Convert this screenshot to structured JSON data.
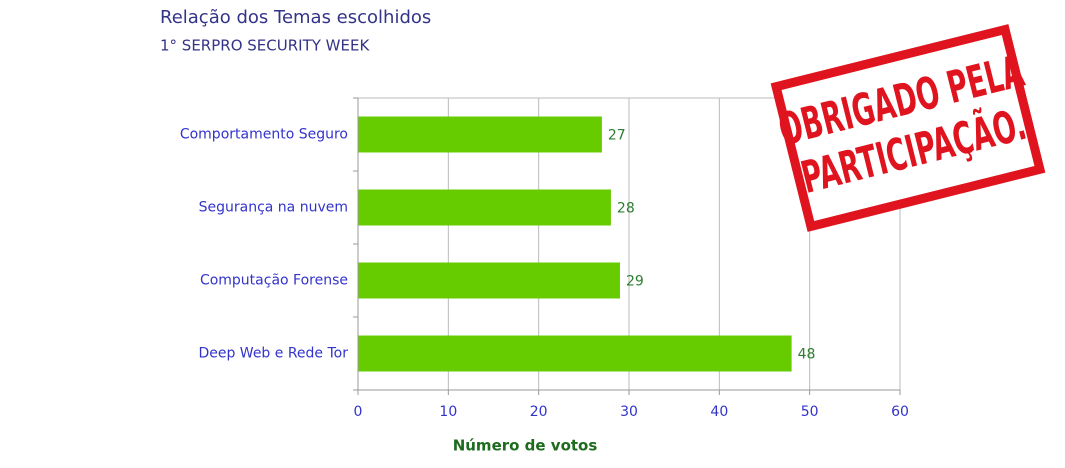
{
  "chart_data": {
    "type": "bar",
    "orientation": "horizontal",
    "title": "Relação dos Temas escolhidos",
    "subtitle": "1° SERPRO SECURITY WEEK",
    "xlabel": "Número de votos",
    "categories": [
      "Comportamento Seguro",
      "Segurança na nuvem",
      "Computação Forense",
      "Deep Web e Rede Tor"
    ],
    "values": [
      27,
      28,
      29,
      48
    ],
    "color": "#66cc00",
    "xlim": [
      0,
      60
    ],
    "xticks": [
      0,
      10,
      20,
      30,
      40,
      50,
      60
    ],
    "grid": true,
    "annotations": [
      "OBRIGADO PELA",
      "PARTICIPAÇÃO."
    ]
  }
}
